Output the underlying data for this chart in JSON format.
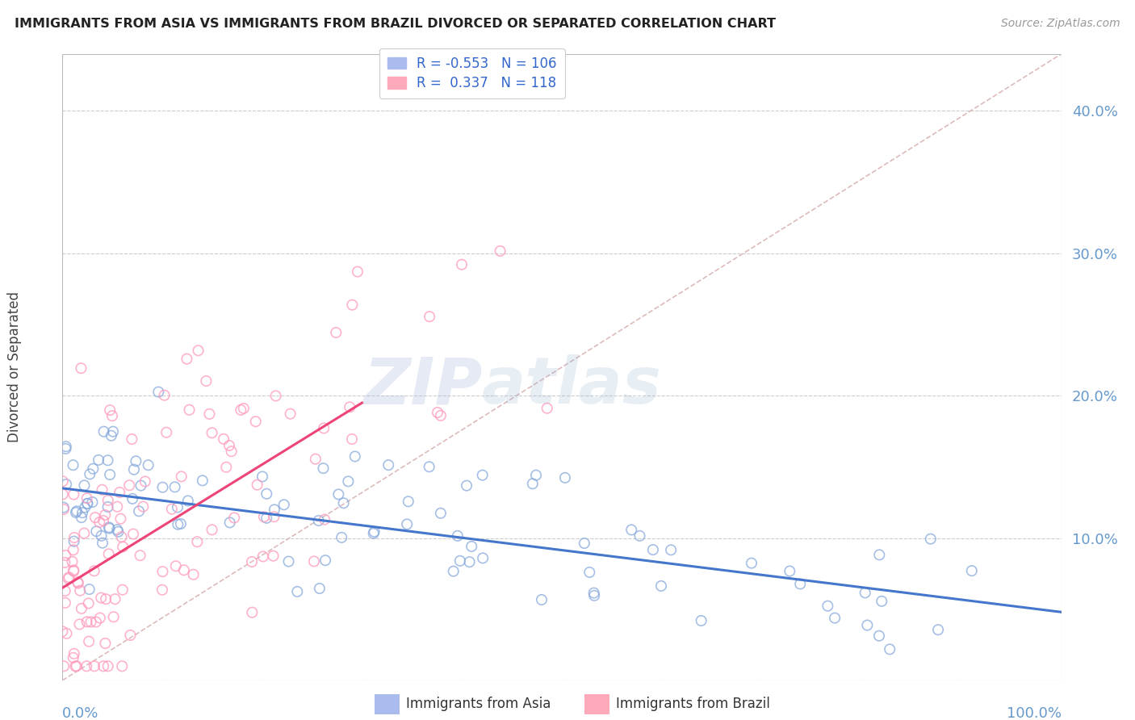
{
  "title": "IMMIGRANTS FROM ASIA VS IMMIGRANTS FROM BRAZIL DIVORCED OR SEPARATED CORRELATION CHART",
  "source": "Source: ZipAtlas.com",
  "ylabel": "Divorced or Separated",
  "ytick_vals": [
    0.1,
    0.2,
    0.3,
    0.4
  ],
  "xlim": [
    0.0,
    1.0
  ],
  "ylim": [
    0.0,
    0.44
  ],
  "blue_color": "#88AADD",
  "pink_color": "#FF99BB",
  "blue_line_color": "#4477CC",
  "pink_line_color": "#EE4477",
  "diagonal_color": "#DDBBBB",
  "watermark_zip": "ZIP",
  "watermark_atlas": "atlas",
  "background_color": "#FFFFFF",
  "grid_color": "#CCCCCC",
  "N_asia": 106,
  "N_brazil": 118,
  "asia_line_x0": 0.0,
  "asia_line_y0": 0.135,
  "asia_line_x1": 1.0,
  "asia_line_y1": 0.048,
  "brazil_line_x0": 0.0,
  "brazil_line_y0": 0.065,
  "brazil_line_x1": 0.3,
  "brazil_line_y1": 0.195,
  "legend_r_asia": "-0.553",
  "legend_n_asia": "106",
  "legend_r_brazil": "0.337",
  "legend_n_brazil": "118"
}
